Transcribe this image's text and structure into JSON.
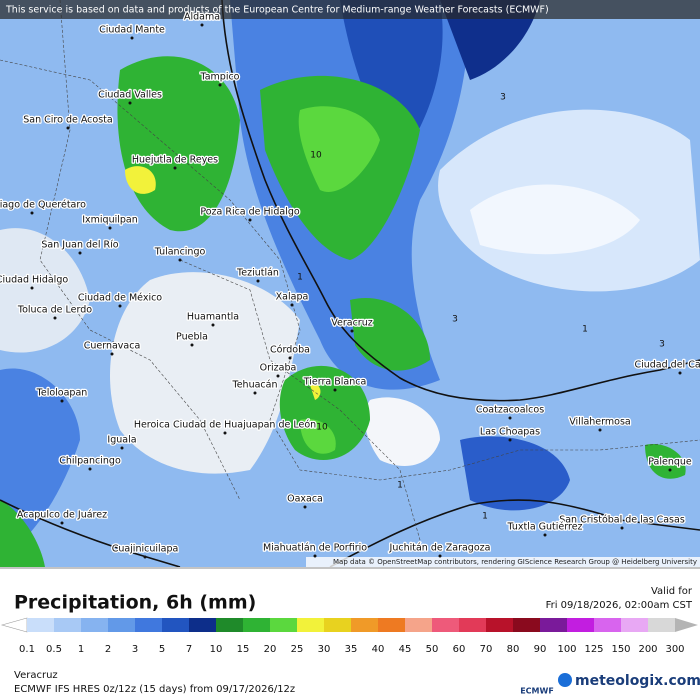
{
  "header": {
    "notice": "This service is based on data and products of the European Centre for Medium-range Weather Forecasts (ECMWF)"
  },
  "map": {
    "attribution": "Map data © OpenStreetMap contributors, rendering GIScience Research Group @ Heidelberg University",
    "cities": [
      "Aldama",
      "Ciudad Mante",
      "Tampico",
      "Ciudad Valles",
      "San Ciro de Acosta",
      "Huejutla de Reyes",
      "Santiago de Querétaro",
      "Ixmiquilpan",
      "Poza Rica de Hidalgo",
      "San Juan del Río",
      "Tulancingo",
      "Teziutlán",
      "Ciudad Hidalgo",
      "Xalapa",
      "Ciudad de México",
      "Toluca de Lerdo",
      "Huamantla",
      "Puebla",
      "Veracruz",
      "Cuernavaca",
      "Córdoba",
      "Orizaba",
      "Tierra Blanca",
      "Tehuacán",
      "Teloloapan",
      "Heroica Ciudad de Huajuapan de León",
      "Iguala",
      "Coatzacoalcos",
      "Las Choapas",
      "Villahermosa",
      "Chilpancingo",
      "Palenque",
      "Oaxaca",
      "Acapulco de Juárez",
      "San Cristóbal de las Casas",
      "Tuxtla Gutiérrez",
      "Cuajinicuilapa",
      "Miahuatlán de Porfirio",
      "Juchitán de Zaragoza",
      "Ciudad del Carmen"
    ],
    "contour_labels": [
      "3",
      "10",
      "1",
      "3",
      "1",
      "3",
      "10",
      "1",
      "1"
    ]
  },
  "legend": {
    "title": "Precipitation, 6h (mm)",
    "valid_label": "Valid for",
    "valid_time": "Fri 09/18/2026, 02:00am CST",
    "scale": [
      0.1,
      0.5,
      1,
      2,
      3,
      5,
      7,
      10,
      15,
      20,
      25,
      30,
      35,
      40,
      45,
      50,
      60,
      70,
      80,
      90,
      100,
      125,
      150,
      200,
      300
    ],
    "colors": [
      "#c9defa",
      "#a8c9f5",
      "#86b3f0",
      "#6299e8",
      "#4078de",
      "#2255c0",
      "#0d2e8a",
      "#1f8a2a",
      "#2fb334",
      "#5bd83e",
      "#f2f23a",
      "#e8d21f",
      "#f09a28",
      "#ee7a22",
      "#f5a48a",
      "#ee5a7a",
      "#e23a58",
      "#b8122a",
      "#8a0a1e",
      "#7a1a9a",
      "#c21ee0",
      "#d864ee",
      "#e8a8f4",
      "#d8d8d8",
      "#b4b4b4"
    ],
    "below_color": "#ffffff"
  },
  "footer": {
    "location": "Veracruz",
    "model": "ECMWF IFS HRES 0z/12z (15 days) from 09/17/2026/12z",
    "ecmwf": "ECMWF",
    "brand": "meteologix.com"
  }
}
